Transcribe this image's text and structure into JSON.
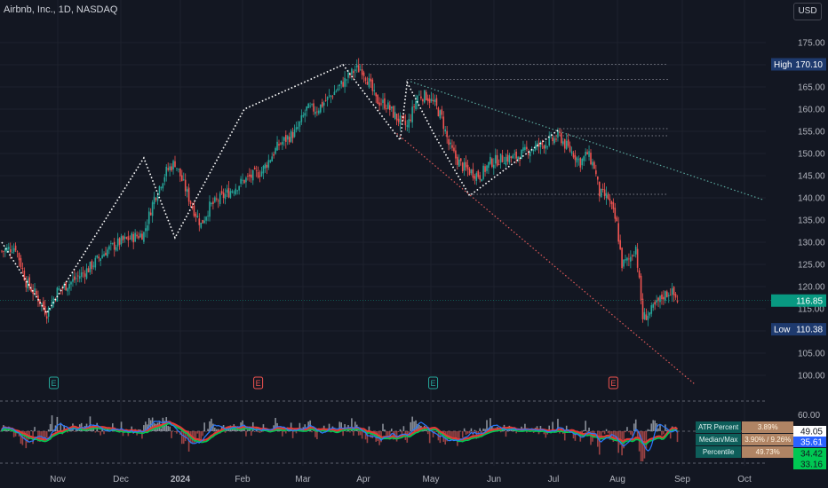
{
  "header": {
    "title": "Airbnb, Inc., 1D, NASDAQ",
    "currency": "USD"
  },
  "colors": {
    "background": "#131722",
    "up": "#26a69a",
    "down": "#ef5350",
    "grid": "#1e222d",
    "axis_text": "#b2b5be"
  },
  "chart_data": {
    "type": "candlestick",
    "title": "Airbnb, Inc., 1D, NASDAQ",
    "x_tick_labels": [
      "Nov",
      "Dec",
      "2024",
      "Feb",
      "Mar",
      "Apr",
      "May",
      "Jun",
      "Jul",
      "Aug",
      "Sep",
      "Oct"
    ],
    "y_tick_labels": [
      "100.00",
      "105.00",
      "110.00",
      "115.00",
      "120.00",
      "125.00",
      "130.00",
      "135.00",
      "140.00",
      "145.00",
      "150.00",
      "155.00",
      "160.00",
      "165.00",
      "170.00",
      "175.00"
    ],
    "ylim": [
      95,
      180
    ],
    "price_path": [
      [
        0,
        128
      ],
      [
        8,
        129
      ],
      [
        14,
        121
      ],
      [
        20,
        118
      ],
      [
        26,
        114
      ],
      [
        32,
        119
      ],
      [
        40,
        121
      ],
      [
        50,
        124
      ],
      [
        60,
        128
      ],
      [
        68,
        130
      ],
      [
        75,
        131
      ],
      [
        82,
        132
      ],
      [
        88,
        140
      ],
      [
        95,
        146
      ],
      [
        100,
        148
      ],
      [
        105,
        143
      ],
      [
        110,
        138
      ],
      [
        115,
        134
      ],
      [
        120,
        138
      ],
      [
        130,
        141
      ],
      [
        140,
        144
      ],
      [
        150,
        146
      ],
      [
        160,
        152
      ],
      [
        170,
        155
      ],
      [
        176,
        160
      ],
      [
        182,
        160
      ],
      [
        190,
        163
      ],
      [
        197,
        166
      ],
      [
        204,
        169
      ],
      [
        208,
        169
      ],
      [
        212,
        166
      ],
      [
        216,
        162
      ],
      [
        222,
        161
      ],
      [
        228,
        158
      ],
      [
        234,
        156
      ],
      [
        240,
        163
      ],
      [
        245,
        163
      ],
      [
        250,
        161
      ],
      [
        254,
        158
      ],
      [
        258,
        152
      ],
      [
        262,
        149
      ],
      [
        266,
        147
      ],
      [
        270,
        146
      ],
      [
        276,
        145
      ],
      [
        282,
        148
      ],
      [
        290,
        149
      ],
      [
        296,
        149
      ],
      [
        305,
        151
      ],
      [
        312,
        152
      ],
      [
        318,
        153
      ],
      [
        322,
        154
      ],
      [
        325,
        152
      ],
      [
        330,
        150
      ],
      [
        334,
        148
      ],
      [
        338,
        150
      ],
      [
        342,
        147
      ],
      [
        345,
        141
      ],
      [
        350,
        140
      ],
      [
        355,
        134
      ],
      [
        358,
        125
      ],
      [
        362,
        126
      ],
      [
        366,
        129
      ],
      [
        370,
        113
      ],
      [
        374,
        114
      ],
      [
        378,
        116
      ],
      [
        382,
        118
      ],
      [
        386,
        119
      ],
      [
        390,
        117
      ]
    ],
    "price_labels": {
      "high": {
        "label": "High",
        "value": "170.10",
        "price": 170.1
      },
      "current": {
        "value": "116.85",
        "price": 116.85
      },
      "low": {
        "label": "Low",
        "value": "110.38",
        "price": 110.38
      }
    },
    "horizontal_levels": [
      170.1,
      166.7,
      155.6,
      154.0,
      140.8
    ],
    "zigzag": [
      [
        0,
        130
      ],
      [
        26,
        114
      ],
      [
        82,
        149
      ],
      [
        100,
        131
      ],
      [
        140,
        160
      ],
      [
        197,
        170
      ],
      [
        230,
        153
      ],
      [
        234,
        166
      ],
      [
        250,
        154
      ],
      [
        270,
        140.5
      ],
      [
        322,
        155.5
      ]
    ],
    "trendlines": [
      {
        "name": "upper",
        "color": "#5aa89e",
        "points": [
          [
            236,
            166.2
          ],
          [
            440,
            139.5
          ]
        ]
      },
      {
        "name": "lower",
        "color": "#e15a5a",
        "points": [
          [
            228,
            154.5
          ],
          [
            400,
            98.0
          ]
        ]
      }
    ],
    "earnings_markers": [
      {
        "label": "E",
        "kind": "up",
        "x": 30
      },
      {
        "label": "E",
        "kind": "down",
        "x": 148
      },
      {
        "label": "E",
        "kind": "up",
        "x": 249
      },
      {
        "label": "E",
        "kind": "down",
        "x": 353
      }
    ],
    "indicator": {
      "y_tick_labels": [
        "60.00"
      ],
      "value_labels": [
        {
          "value": "49.05",
          "bg": "#ffffff",
          "fg": "#131722"
        },
        {
          "value": "35.61",
          "bg": "#2962ff",
          "fg": "#ffffff"
        },
        {
          "value": "34.42",
          "bg": "#00c853",
          "fg": "#131722"
        },
        {
          "value": "33.16",
          "bg": "#00c853",
          "fg": "#131722"
        }
      ],
      "table": [
        {
          "key": "ATR Percent",
          "value": "3.89%"
        },
        {
          "key": "Median/Max",
          "value": "3.90% / 9.26%"
        },
        {
          "key": "Percentile",
          "value": "49.73%"
        }
      ]
    }
  }
}
